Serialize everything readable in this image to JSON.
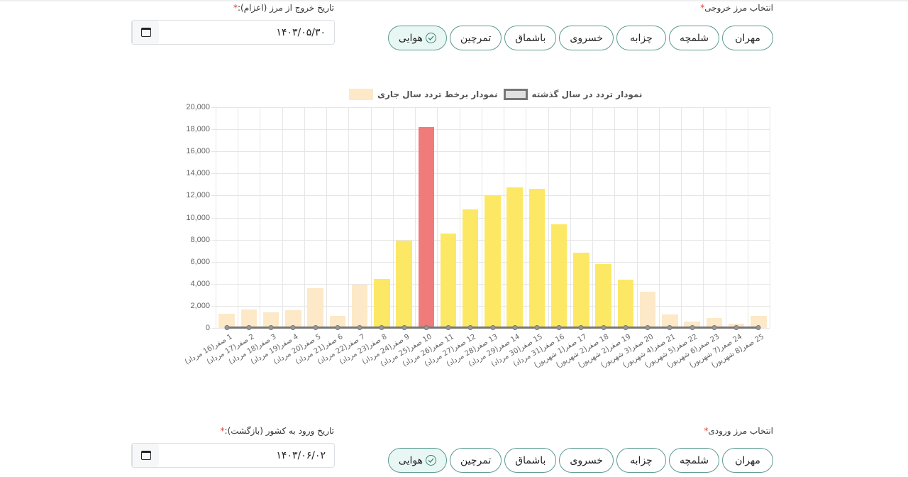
{
  "exit": {
    "border_label": "انتخاب مرز خروجی",
    "required_mark": "*",
    "borders": [
      "مهران",
      "شلمچه",
      "چزابه",
      "خسروی",
      "باشماق",
      "تمرچین",
      "هوایی"
    ],
    "selected_border": "هوایی",
    "date_label": "تاریخ خروج از مرز (اعزام):",
    "date_value": "۱۴۰۳/۰۵/۳۰"
  },
  "entry": {
    "border_label": "انتخاب مرز ورودی",
    "required_mark": "*",
    "borders": [
      "مهران",
      "شلمچه",
      "چزابه",
      "خسروی",
      "باشماق",
      "تمرچین",
      "هوایی"
    ],
    "selected_border": "هوایی",
    "date_label": "تاریخ ورود به کشور (بازگشت):",
    "date_value": "۱۴۰۳/۰۶/۰۲"
  },
  "colors": {
    "accent": "#5a9a92",
    "bar_inactive": "#fde9c7",
    "bar_in_range": "#fde865",
    "bar_peak": "#f07b7b",
    "line_previous_year": "#777777"
  },
  "chart_data": {
    "type": "bar",
    "title": "",
    "legend": [
      {
        "label": "نمودار برخط تردد سال جاری",
        "color": "#fde9c7"
      },
      {
        "label": "نمودار تردد در سال گذشته",
        "color": "#e0e0e0"
      }
    ],
    "legend_position": "top",
    "grid": true,
    "xlabel": "",
    "ylabel": "",
    "ylim": [
      0,
      20000
    ],
    "yticks": [
      "0",
      "2,000",
      "4,000",
      "6,000",
      "8,000",
      "10,000",
      "12,000",
      "14,000",
      "16,000",
      "18,000",
      "20,000"
    ],
    "categories": [
      "1 صفر(16 مرداد)",
      "2 صفر(17 مرداد)",
      "3 صفر(18 مرداد)",
      "4 صفر(19 مرداد)",
      "5 صفر(20 مرداد)",
      "6 صفر(21 مرداد)",
      "7 صفر(22 مرداد)",
      "8 صفر(23 مرداد)",
      "9 صفر(24 مرداد)",
      "10 صفر(25 مرداد)",
      "11 صفر(26 مرداد)",
      "12 صفر(27 مرداد)",
      "13 صفر(28 مرداد)",
      "14 صفر(29 مرداد)",
      "15 صفر(30 مرداد)",
      "16 صفر(31 مرداد)",
      "17 صفر(1 شهریور)",
      "18 صفر(2 شهریور)",
      "19 صفر(2 شهریور)",
      "20 صفر(3 شهریور)",
      "21 صفر(4 شهریور)",
      "22 صفر(5 شهریور)",
      "23 صفر(6 شهریور)",
      "24 صفر(7 شهریور)",
      "25 صفر(8 شهریور)"
    ],
    "series": [
      {
        "name": "نمودار برخط تردد سال جاری",
        "type": "bar",
        "values": [
          1300,
          1700,
          1400,
          1600,
          3600,
          1100,
          3900,
          4450,
          7900,
          18200,
          8550,
          10750,
          12000,
          12750,
          12600,
          9400,
          6800,
          5800,
          4400,
          3300,
          1200,
          600,
          900,
          400,
          1100
        ],
        "bar_states": [
          "inactive",
          "inactive",
          "inactive",
          "inactive",
          "inactive",
          "inactive",
          "inactive",
          "range",
          "range",
          "peak",
          "range",
          "range",
          "range",
          "range",
          "range",
          "range",
          "range",
          "range",
          "range",
          "inactive",
          "inactive",
          "inactive",
          "inactive",
          "inactive",
          "inactive"
        ]
      },
      {
        "name": "نمودار تردد در سال گذشته",
        "type": "line",
        "values": [
          0,
          0,
          0,
          0,
          0,
          0,
          0,
          0,
          0,
          0,
          0,
          0,
          0,
          0,
          0,
          0,
          0,
          0,
          0,
          0,
          0,
          0,
          0,
          0,
          0
        ]
      }
    ]
  }
}
